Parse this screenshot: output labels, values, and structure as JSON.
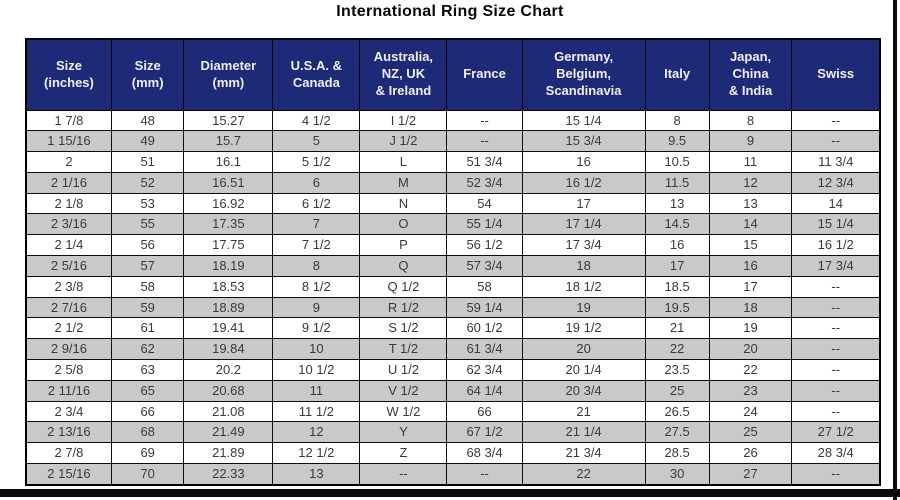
{
  "title": "International Ring Size Chart",
  "colors": {
    "header_background": "#1c2a78",
    "header_text": "#f3effa",
    "row_alternate": "#c9c9c9",
    "row_default": "#ffffff",
    "body_text": "#3a3a3a",
    "border": "#000000"
  },
  "chart_data": {
    "type": "table",
    "title": "International Ring Size Chart",
    "columns": [
      "Size\n(inches)",
      "Size\n(mm)",
      "Diameter\n(mm)",
      "U.S.A. &\nCanada",
      "Australia,\nNZ, UK\n& Ireland",
      "France",
      "Germany,\nBelgium,\nScandinavia",
      "Italy",
      "Japan,\nChina\n& India",
      "Swiss"
    ],
    "rows": [
      [
        "1 7/8",
        "48",
        "15.27",
        "4 1/2",
        "I 1/2",
        "--",
        "15 1/4",
        "8",
        "8",
        "--"
      ],
      [
        "1 15/16",
        "49",
        "15.7",
        "5",
        "J 1/2",
        "--",
        "15 3/4",
        "9.5",
        "9",
        "--"
      ],
      [
        "2",
        "51",
        "16.1",
        "5 1/2",
        "L",
        "51 3/4",
        "16",
        "10.5",
        "11",
        "11 3/4"
      ],
      [
        "2 1/16",
        "52",
        "16.51",
        "6",
        "M",
        "52 3/4",
        "16 1/2",
        "11.5",
        "12",
        "12 3/4"
      ],
      [
        "2 1/8",
        "53",
        "16.92",
        "6 1/2",
        "N",
        "54",
        "17",
        "13",
        "13",
        "14"
      ],
      [
        "2 3/16",
        "55",
        "17.35",
        "7",
        "O",
        "55 1/4",
        "17 1/4",
        "14.5",
        "14",
        "15 1/4"
      ],
      [
        "2 1/4",
        "56",
        "17.75",
        "7 1/2",
        "P",
        "56 1/2",
        "17 3/4",
        "16",
        "15",
        "16 1/2"
      ],
      [
        "2 5/16",
        "57",
        "18.19",
        "8",
        "Q",
        "57 3/4",
        "18",
        "17",
        "16",
        "17 3/4"
      ],
      [
        "2 3/8",
        "58",
        "18.53",
        "8 1/2",
        "Q 1/2",
        "58",
        "18 1/2",
        "18.5",
        "17",
        "--"
      ],
      [
        "2 7/16",
        "59",
        "18.89",
        "9",
        "R 1/2",
        "59 1/4",
        "19",
        "19.5",
        "18",
        "--"
      ],
      [
        "2 1/2",
        "61",
        "19.41",
        "9 1/2",
        "S 1/2",
        "60 1/2",
        "19 1/2",
        "21",
        "19",
        "--"
      ],
      [
        "2 9/16",
        "62",
        "19.84",
        "10",
        "T 1/2",
        "61 3/4",
        "20",
        "22",
        "20",
        "--"
      ],
      [
        "2 5/8",
        "63",
        "20.2",
        "10 1/2",
        "U 1/2",
        "62 3/4",
        "20 1/4",
        "23.5",
        "22",
        "--"
      ],
      [
        "2 11/16",
        "65",
        "20.68",
        "11",
        "V 1/2",
        "64 1/4",
        "20 3/4",
        "25",
        "23",
        "--"
      ],
      [
        "2 3/4",
        "66",
        "21.08",
        "11 1/2",
        "W 1/2",
        "66",
        "21",
        "26.5",
        "24",
        "--"
      ],
      [
        "2 13/16",
        "68",
        "21.49",
        "12",
        "Y",
        "67 1/2",
        "21 1/4",
        "27.5",
        "25",
        "27 1/2"
      ],
      [
        "2 7/8",
        "69",
        "21.89",
        "12 1/2",
        "Z",
        "68 3/4",
        "21 3/4",
        "28.5",
        "26",
        "28 3/4"
      ],
      [
        "2 15/16",
        "70",
        "22.33",
        "13",
        "--",
        "--",
        "22",
        "30",
        "27",
        "--"
      ]
    ]
  }
}
